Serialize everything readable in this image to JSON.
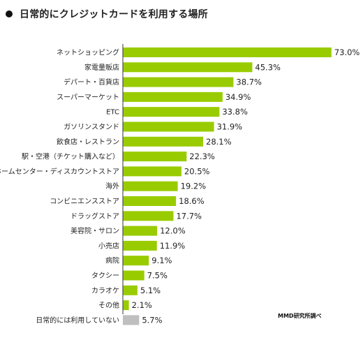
{
  "title": "日常的にクレジットカードを利用する場所",
  "source": "MMD研究所調べ",
  "colors": {
    "bar": "#99cc00",
    "bar_other": "#bfbfbf",
    "axis": "#333333"
  },
  "chart_data": {
    "type": "bar",
    "orientation": "horizontal",
    "title": "日常的にクレジットカードを利用する場所",
    "unit": "%",
    "xlim": [
      0,
      75
    ],
    "grid": false,
    "categories": [
      "ネットショッピング",
      "家電量販店",
      "デパート・百貨店",
      "スーパーマーケット",
      "ETC",
      "ガソリンスタンド",
      "飲食店・レストラン",
      "駅・空港（チケット購入など）",
      "ホームセンター・ディスカウントストア",
      "海外",
      "コンビニエンスストア",
      "ドラッグストア",
      "美容院・サロン",
      "小売店",
      "病院",
      "タクシー",
      "カラオケ",
      "その他",
      "日常的には利用していない"
    ],
    "values": [
      73.0,
      45.3,
      38.7,
      34.9,
      33.8,
      31.9,
      28.1,
      22.3,
      20.5,
      19.2,
      18.6,
      17.7,
      12.0,
      11.9,
      9.1,
      7.5,
      5.1,
      2.1,
      5.7
    ],
    "value_labels": [
      "73.0%",
      "45.3%",
      "38.7%",
      "34.9%",
      "33.8%",
      "31.9%",
      "28.1%",
      "22.3%",
      "20.5%",
      "19.2%",
      "18.6%",
      "17.7%",
      "12.0%",
      "11.9%",
      "9.1%",
      "7.5%",
      "5.1%",
      "2.1%",
      "5.7%"
    ],
    "highlight_gray_index": 18
  }
}
